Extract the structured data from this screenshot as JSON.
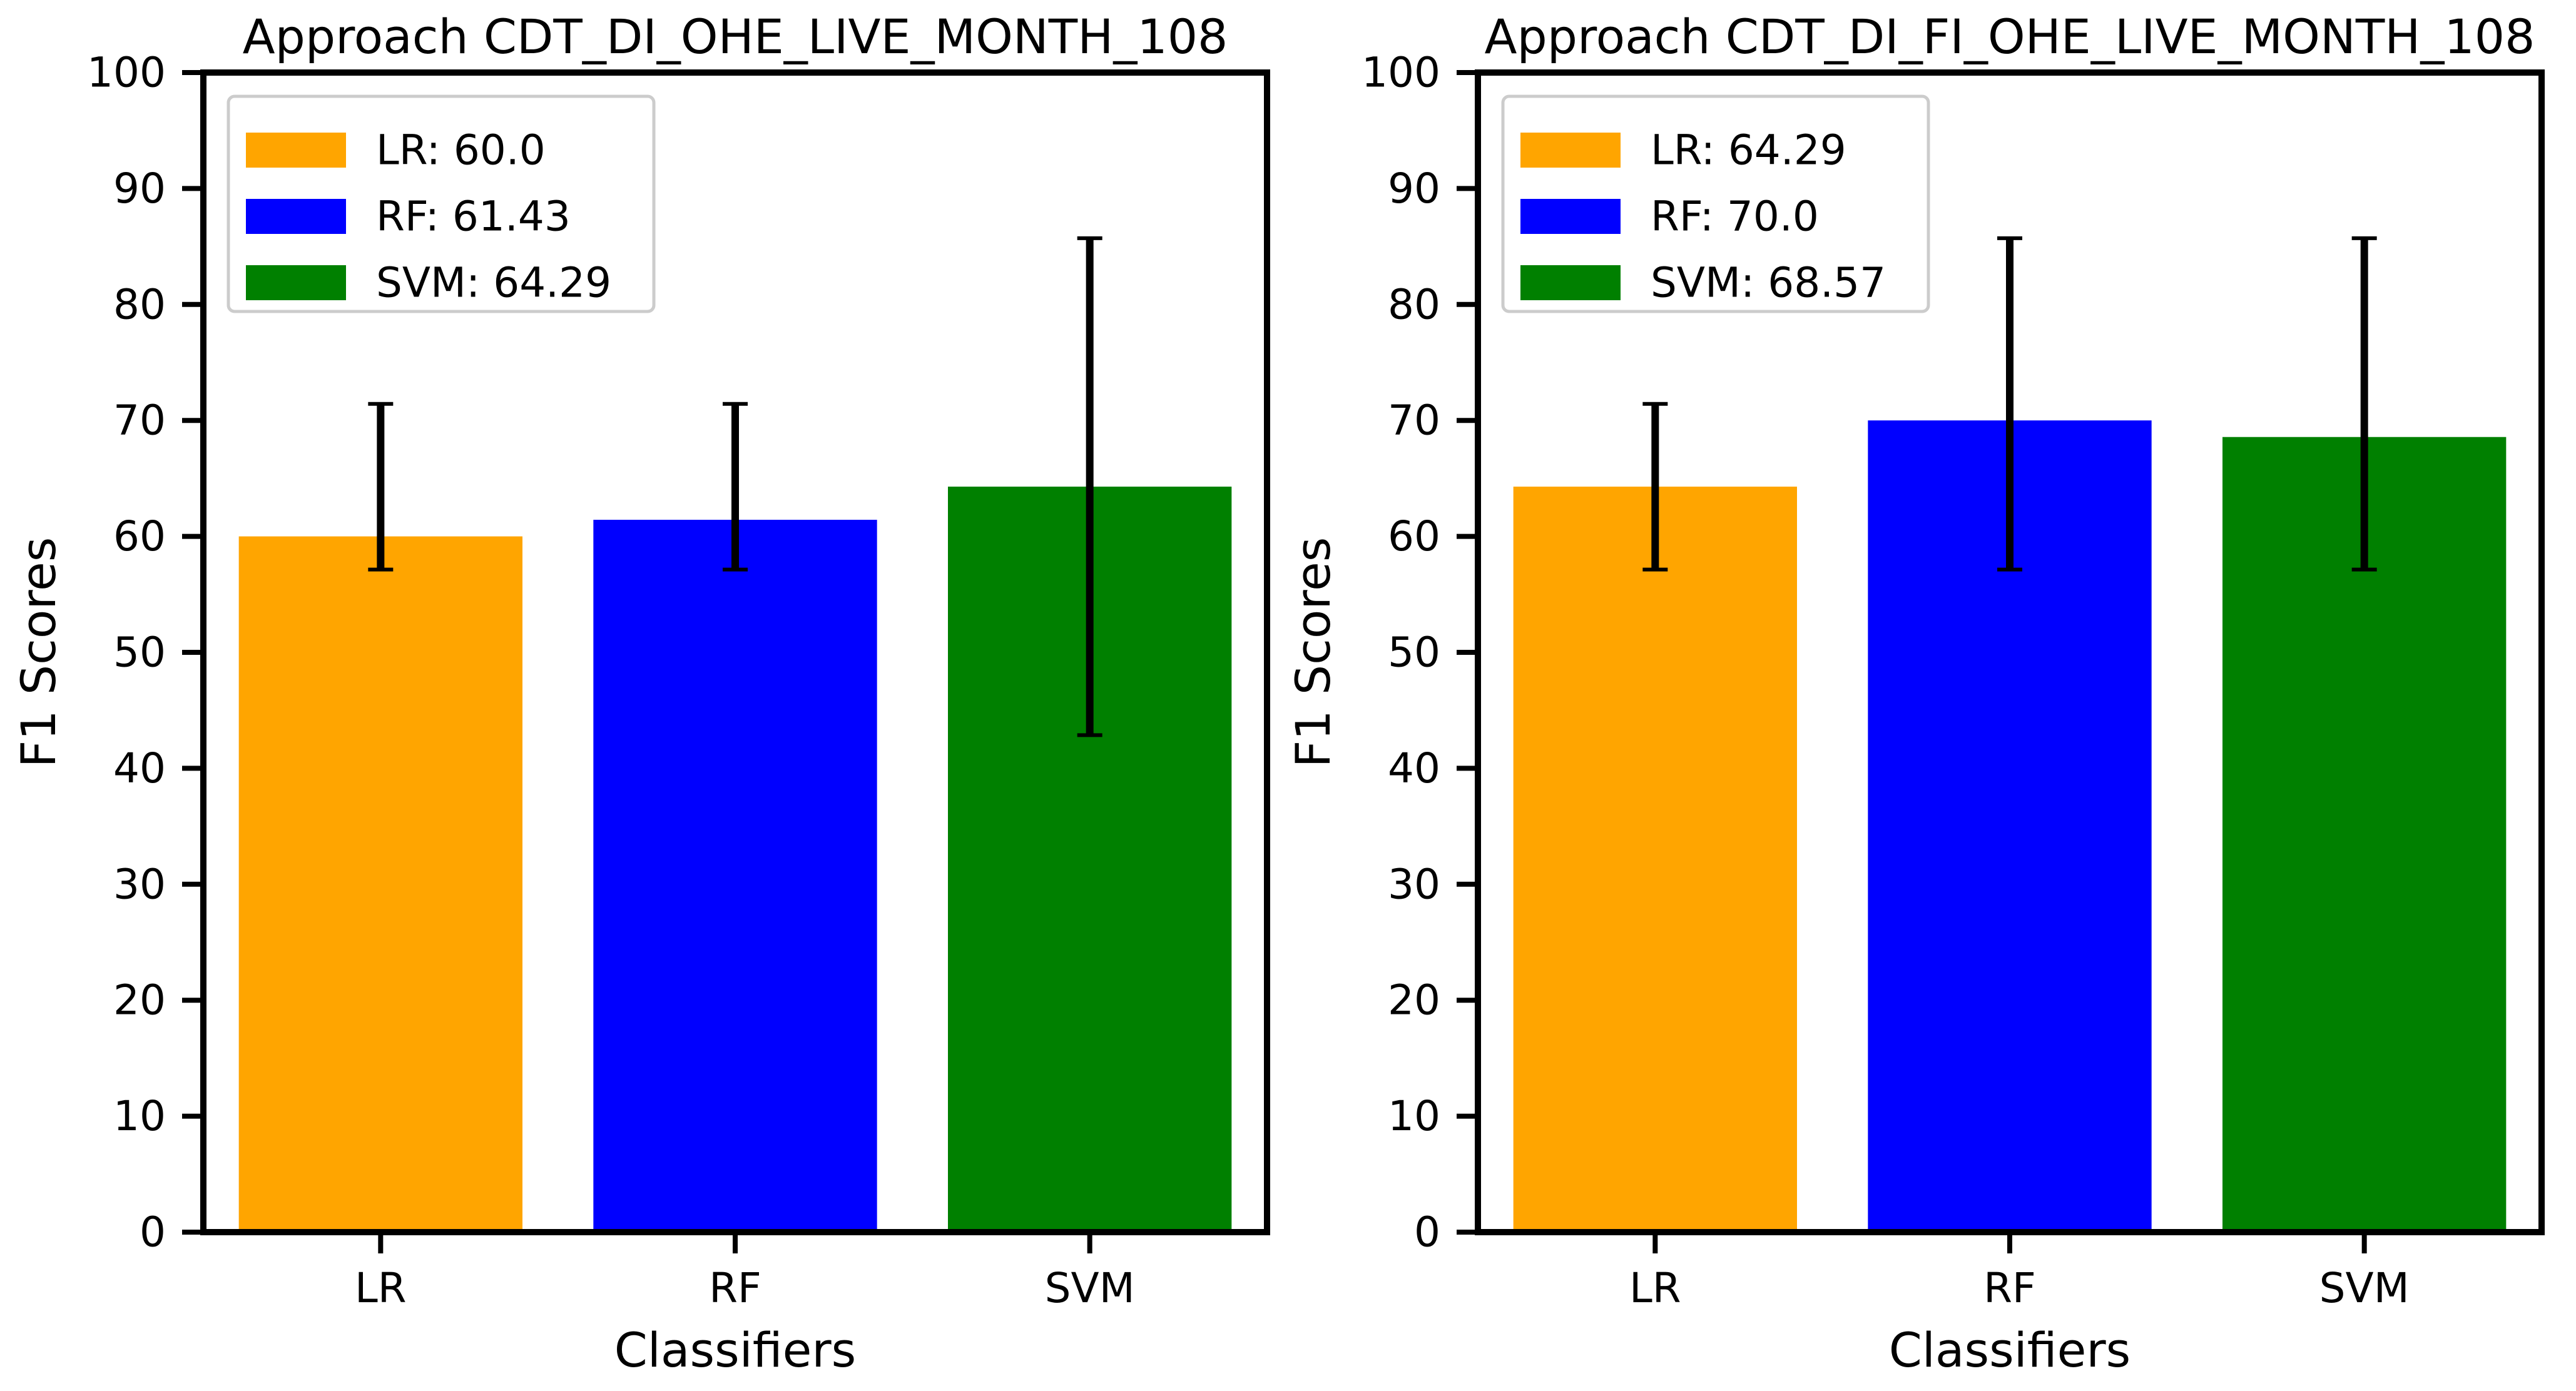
{
  "chart_data": [
    {
      "type": "bar",
      "title": "Approach CDT_DI_OHE_LIVE_MONTH_108",
      "xlabel": "Classifiers",
      "ylabel": "F1 Scores",
      "categories": [
        "LR",
        "RF",
        "SVM"
      ],
      "values": [
        60.0,
        61.43,
        64.29
      ],
      "error_low": [
        57.14,
        57.14,
        42.86
      ],
      "error_high": [
        71.43,
        71.43,
        85.71
      ],
      "colors": [
        "#FFA500",
        "#0000FF",
        "#008000"
      ],
      "legend": [
        "LR: 60.0",
        "RF: 61.43",
        "SVM: 64.29"
      ],
      "legend_position": "top-left",
      "ylim": [
        0,
        100
      ],
      "yticks": [
        "0",
        "10",
        "20",
        "30",
        "40",
        "50",
        "60",
        "70",
        "80",
        "90",
        "100"
      ],
      "grid": false
    },
    {
      "type": "bar",
      "title": "Approach CDT_DI_FI_OHE_LIVE_MONTH_108",
      "xlabel": "Classifiers",
      "ylabel": "F1 Scores",
      "categories": [
        "LR",
        "RF",
        "SVM"
      ],
      "values": [
        64.29,
        70.0,
        68.57
      ],
      "error_low": [
        57.14,
        57.14,
        57.14
      ],
      "error_high": [
        71.43,
        85.71,
        85.71
      ],
      "colors": [
        "#FFA500",
        "#0000FF",
        "#008000"
      ],
      "legend": [
        "LR: 64.29",
        "RF: 70.0",
        "SVM: 68.57"
      ],
      "legend_position": "top-left",
      "ylim": [
        0,
        100
      ],
      "yticks": [
        "0",
        "10",
        "20",
        "30",
        "40",
        "50",
        "60",
        "70",
        "80",
        "90",
        "100"
      ],
      "grid": false
    }
  ]
}
